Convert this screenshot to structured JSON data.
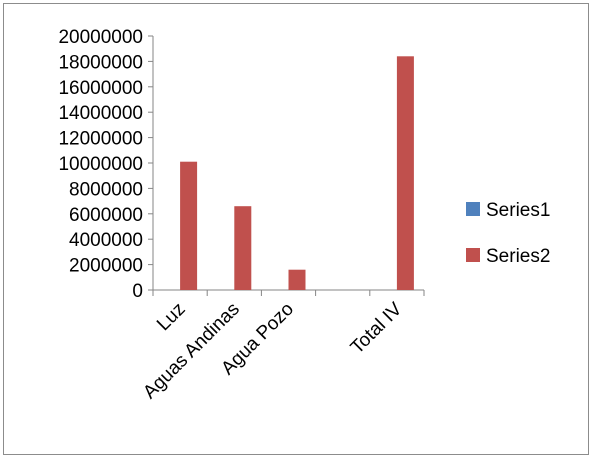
{
  "chart_data": {
    "type": "bar",
    "categories": [
      "Luz",
      "Aguas Andinas",
      "Agua Pozo",
      "",
      "Total IV"
    ],
    "series": [
      {
        "name": "Series1",
        "color": "#4f81bd",
        "values": [
          0,
          0,
          0,
          0,
          0
        ]
      },
      {
        "name": "Series2",
        "color": "#c0504d",
        "values": [
          10100000,
          6600000,
          1600000,
          0,
          18400000
        ]
      }
    ],
    "ylim": [
      0,
      20000000
    ],
    "yticks": [
      0,
      2000000,
      4000000,
      6000000,
      8000000,
      10000000,
      12000000,
      14000000,
      16000000,
      18000000,
      20000000
    ],
    "title": "",
    "xlabel": "",
    "ylabel": "",
    "grid": false,
    "legend_position": "right"
  }
}
